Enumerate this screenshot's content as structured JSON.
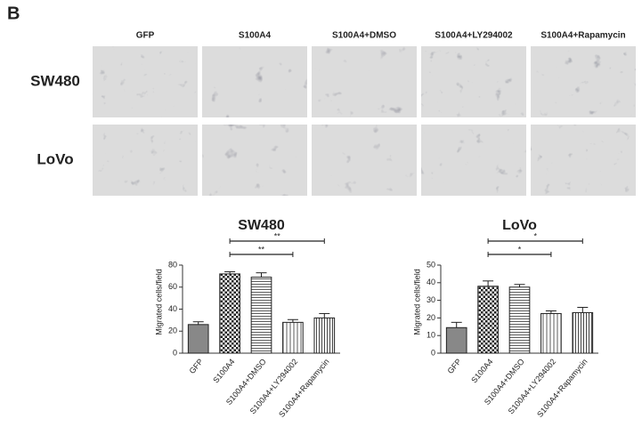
{
  "figure_label": "B",
  "micrographs": {
    "columns": [
      "GFP",
      "S100A4",
      "S100A4+DMSO",
      "S100A4+LY294002",
      "S100A4+Rapamycin"
    ],
    "rows": [
      "SW480",
      "LoVo"
    ]
  },
  "chart_data": [
    {
      "type": "bar",
      "title": "SW480",
      "ylabel": "Migrated cells/field",
      "categories": [
        "GFP",
        "S100A4",
        "S100A4+DMSO",
        "S100A4+LY294002",
        "S100A4+Rapamycin"
      ],
      "values": [
        26,
        72,
        69,
        28,
        32
      ],
      "errors": [
        2.5,
        2,
        4,
        2.5,
        4
      ],
      "color": "#888888",
      "ylim": [
        0,
        80
      ],
      "yticks": [
        0,
        20,
        40,
        60,
        80
      ],
      "annotations": [
        {
          "text": "**",
          "between": [
            1,
            3
          ]
        },
        {
          "text": "**",
          "between": [
            1,
            4
          ]
        }
      ]
    },
    {
      "type": "bar",
      "title": "LoVo",
      "ylabel": "Migrated cells/field",
      "categories": [
        "GFP",
        "S100A4",
        "S100A4+DMSO",
        "S100A4+LY294002",
        "S100A4+Rapamycin"
      ],
      "values": [
        14.5,
        38,
        37.5,
        22.5,
        23
      ],
      "errors": [
        3,
        3,
        1.5,
        1.5,
        3
      ],
      "color": "#888888",
      "ylim": [
        0,
        50
      ],
      "yticks": [
        0,
        10,
        20,
        30,
        40,
        50
      ],
      "annotations": [
        {
          "text": "*",
          "between": [
            1,
            3
          ]
        },
        {
          "text": "*",
          "between": [
            1,
            4
          ]
        }
      ]
    }
  ]
}
